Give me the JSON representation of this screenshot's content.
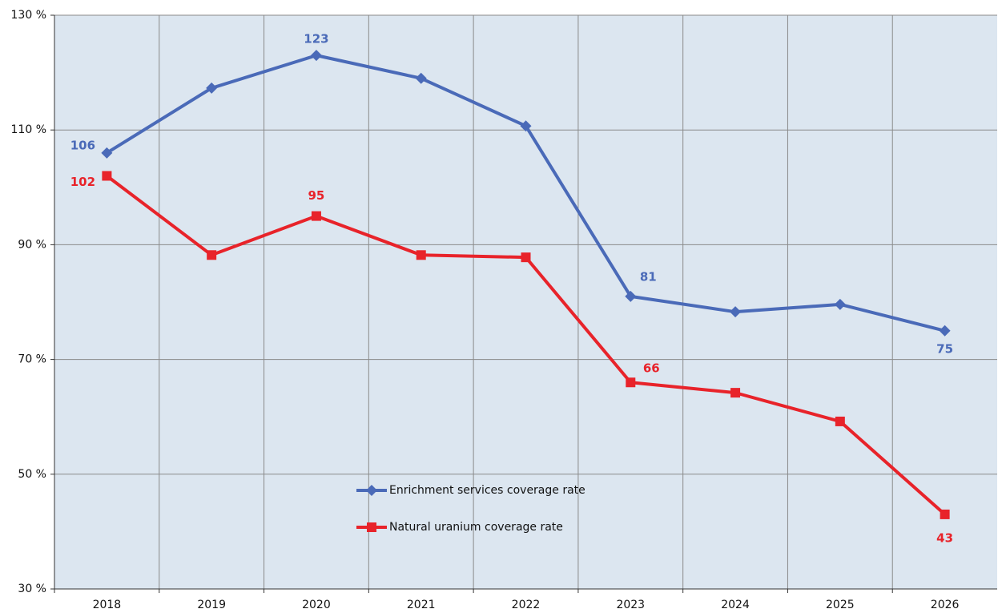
{
  "chart_data": {
    "type": "line",
    "categories": [
      "2018",
      "2019",
      "2020",
      "2021",
      "2022",
      "2023",
      "2024",
      "2025",
      "2026"
    ],
    "series": [
      {
        "name": "Enrichment services coverage rate",
        "color": "#4a6ab8",
        "marker": "diamond",
        "values": [
          106,
          117.3,
          123,
          119,
          110.7,
          81,
          78.3,
          79.6,
          75
        ],
        "value_labels": [
          "106",
          null,
          "123",
          null,
          null,
          "81",
          null,
          null,
          "75"
        ]
      },
      {
        "name": "Natural uranium coverage rate",
        "color": "#e8232a",
        "marker": "square",
        "values": [
          102,
          88.2,
          95,
          88.2,
          87.8,
          66,
          64.2,
          59.2,
          43
        ],
        "value_labels": [
          "102",
          null,
          "95",
          null,
          null,
          "66",
          null,
          null,
          "43"
        ]
      }
    ],
    "ylim": [
      30,
      130
    ],
    "yticks": [
      {
        "value": 30,
        "label": "30 %"
      },
      {
        "value": 50,
        "label": "50 %"
      },
      {
        "value": 70,
        "label": "70 %"
      },
      {
        "value": 90,
        "label": "90 %"
      },
      {
        "value": 110,
        "label": "110 %"
      },
      {
        "value": 130,
        "label": "130 %"
      }
    ],
    "grid": true,
    "background": "#dce6f0"
  }
}
